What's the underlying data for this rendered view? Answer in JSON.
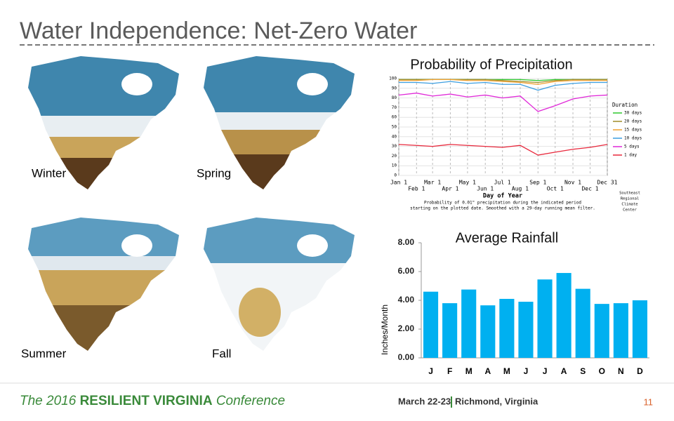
{
  "header": {
    "title": "Water Independence: Net-Zero Water"
  },
  "maps": [
    {
      "label": "Winter"
    },
    {
      "label": "Spring"
    },
    {
      "label": "Summer"
    },
    {
      "label": "Fall"
    }
  ],
  "chart_data": [
    {
      "type": "line",
      "title": "Probability of Precipitation",
      "xlabel": "Day of Year",
      "caption": [
        "Probability of 0.01\" precipitation during the indicated period",
        "starting on the plotted date. Smoothed with a 29-day running mean filter."
      ],
      "credit": [
        "Southeast",
        "Regional",
        "Climate",
        "Center"
      ],
      "legend_title": "Duration",
      "x": [
        1,
        32,
        60,
        91,
        121,
        152,
        182,
        213,
        244,
        274,
        305,
        335,
        365
      ],
      "xlim": [
        1,
        365
      ],
      "xticks": [
        {
          "value": 1,
          "label": "Jan 1"
        },
        {
          "value": 32,
          "label": "Feb 1"
        },
        {
          "value": 60,
          "label": "Mar 1"
        },
        {
          "value": 91,
          "label": "Apr 1"
        },
        {
          "value": 121,
          "label": "May 1"
        },
        {
          "value": 152,
          "label": "Jun 1"
        },
        {
          "value": 182,
          "label": "Jul 1"
        },
        {
          "value": 213,
          "label": "Aug 1"
        },
        {
          "value": 244,
          "label": "Sep 1"
        },
        {
          "value": 274,
          "label": "Oct 1"
        },
        {
          "value": 305,
          "label": "Nov 1"
        },
        {
          "value": 335,
          "label": "Dec 1"
        },
        {
          "value": 365,
          "label": "Dec 31"
        }
      ],
      "ylim": [
        0,
        100
      ],
      "yticks": [
        0,
        10,
        20,
        30,
        40,
        50,
        60,
        70,
        80,
        90,
        100
      ],
      "grid": true,
      "series": [
        {
          "name": "30 days",
          "color": "#2ec82e",
          "values": [
            99,
            99,
            99,
            99,
            99,
            99,
            99,
            99,
            98,
            99,
            99,
            99,
            99
          ]
        },
        {
          "name": "20 days",
          "color": "#a08c28",
          "values": [
            99,
            99,
            99,
            99,
            99,
            99,
            98,
            97,
            96,
            98,
            99,
            99,
            99
          ]
        },
        {
          "name": "15 days",
          "color": "#f0a030",
          "values": [
            98,
            98,
            99,
            99,
            98,
            98,
            97,
            96,
            94,
            97,
            98,
            98,
            98
          ]
        },
        {
          "name": "10 days",
          "color": "#3c9ee0",
          "values": [
            96,
            96,
            95,
            97,
            95,
            96,
            94,
            94,
            88,
            93,
            95,
            96,
            96
          ]
        },
        {
          "name": "5 days",
          "color": "#e028d8",
          "values": [
            83,
            85,
            82,
            84,
            81,
            83,
            80,
            82,
            66,
            72,
            79,
            82,
            83
          ]
        },
        {
          "name": "1 day",
          "color": "#e8283c",
          "values": [
            32,
            31,
            30,
            32,
            31,
            30,
            29,
            31,
            21,
            24,
            27,
            29,
            32
          ]
        }
      ]
    },
    {
      "type": "bar",
      "title": "Average Rainfall",
      "ylabel": "Inches/Month",
      "color": "#00b0f0",
      "categories": [
        "J",
        "F",
        "M",
        "A",
        "M",
        "J",
        "J",
        "A",
        "S",
        "O",
        "N",
        "D"
      ],
      "values": [
        4.6,
        3.8,
        4.75,
        3.65,
        4.1,
        3.9,
        5.45,
        5.9,
        4.8,
        3.75,
        3.8,
        4.0
      ],
      "ylim": [
        0,
        8
      ],
      "yticks": [
        {
          "value": 0,
          "label": "0.00"
        },
        {
          "value": 2,
          "label": "2.00"
        },
        {
          "value": 4,
          "label": "4.00"
        },
        {
          "value": 6,
          "label": "6.00"
        },
        {
          "value": 8,
          "label": "8.00"
        }
      ]
    }
  ],
  "footer": {
    "conference": [
      "The 2016",
      "RESILIENT VIRGINIA",
      "Conference"
    ],
    "dates": "March 22-23",
    "place": "Richmond, Virginia",
    "page": "11"
  }
}
